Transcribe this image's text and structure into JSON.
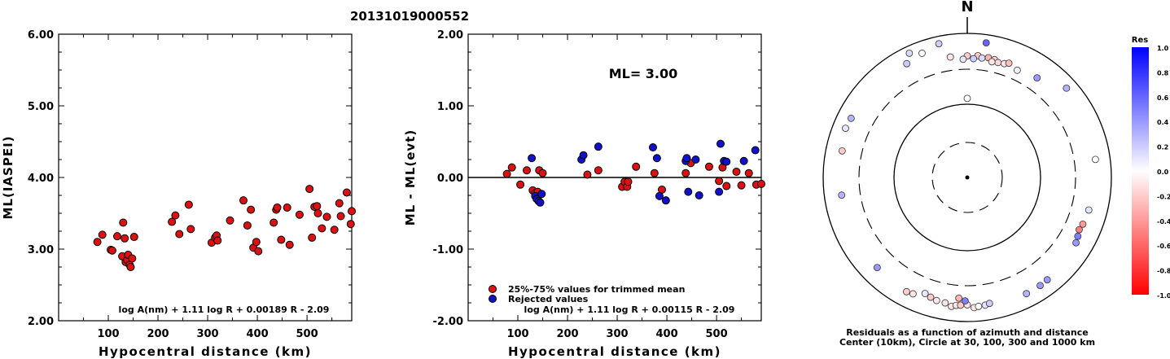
{
  "title": "20131019000552",
  "chart_data": [
    {
      "type": "scatter",
      "ylabel": "ML(IASPEI)",
      "xlabel": "Hypocentral distance (km)",
      "xlim": [
        0,
        590
      ],
      "ylim": [
        2.0,
        6.0
      ],
      "xticks": [
        100,
        200,
        300,
        400,
        500
      ],
      "yticks": [
        "2.00",
        "3.00",
        "4.00",
        "5.00",
        "6.00"
      ],
      "yticks_values": [
        2,
        3,
        4,
        5,
        6
      ],
      "formula": "log A(nm) + 1.11 log R + 0.00189 R - 2.09",
      "marker_color": "#dd1111",
      "points": [
        [
          78,
          3.1
        ],
        [
          88,
          3.2
        ],
        [
          105,
          2.99
        ],
        [
          108,
          2.98
        ],
        [
          118,
          3.18
        ],
        [
          130,
          3.37
        ],
        [
          133,
          3.15
        ],
        [
          128,
          2.9
        ],
        [
          135,
          2.82
        ],
        [
          138,
          2.85
        ],
        [
          140,
          2.92
        ],
        [
          143,
          2.78
        ],
        [
          145,
          2.75
        ],
        [
          148,
          2.87
        ],
        [
          152,
          3.17
        ],
        [
          228,
          3.38
        ],
        [
          235,
          3.47
        ],
        [
          243,
          3.21
        ],
        [
          262,
          3.62
        ],
        [
          266,
          3.28
        ],
        [
          308,
          3.09
        ],
        [
          315,
          3.16
        ],
        [
          318,
          3.19
        ],
        [
          320,
          3.12
        ],
        [
          345,
          3.4
        ],
        [
          372,
          3.68
        ],
        [
          380,
          3.33
        ],
        [
          387,
          3.55
        ],
        [
          392,
          3.02
        ],
        [
          398,
          3.1
        ],
        [
          402,
          2.97
        ],
        [
          433,
          3.37
        ],
        [
          438,
          3.55
        ],
        [
          440,
          3.58
        ],
        [
          448,
          3.13
        ],
        [
          460,
          3.58
        ],
        [
          465,
          3.06
        ],
        [
          485,
          3.48
        ],
        [
          505,
          3.84
        ],
        [
          510,
          3.16
        ],
        [
          515,
          3.59
        ],
        [
          520,
          3.6
        ],
        [
          522,
          3.5
        ],
        [
          530,
          3.29
        ],
        [
          540,
          3.45
        ],
        [
          555,
          3.27
        ],
        [
          565,
          3.64
        ],
        [
          568,
          3.46
        ],
        [
          580,
          3.79
        ],
        [
          588,
          3.35
        ],
        [
          590,
          3.53
        ]
      ]
    },
    {
      "type": "scatter",
      "ylabel": "ML - ML(evt)",
      "xlabel": "Hypocentral distance (km)",
      "xlim": [
        0,
        590
      ],
      "ylim": [
        -2.0,
        2.0
      ],
      "xticks": [
        100,
        200,
        300,
        400,
        500
      ],
      "yticks": [
        "-2.00",
        "-1.00",
        "0.00",
        "1.00",
        "2.00"
      ],
      "yticks_values": [
        -2,
        -1,
        0,
        1,
        2
      ],
      "annotation": "ML= 3.00",
      "formula": "log A(nm) + 1.11 log R + 0.00115 R - 2.09",
      "series": [
        {
          "name": "25%-75% values for trimmed mean",
          "color": "#dd1111",
          "points": [
            [
              78,
              0.05
            ],
            [
              88,
              0.14
            ],
            [
              105,
              -0.1
            ],
            [
              118,
              0.1
            ],
            [
              130,
              -0.18
            ],
            [
              135,
              -0.22
            ],
            [
              140,
              -0.2
            ],
            [
              143,
              0.1
            ],
            [
              150,
              0.06
            ],
            [
              240,
              0.04
            ],
            [
              262,
              0.1
            ],
            [
              310,
              -0.13
            ],
            [
              315,
              -0.06
            ],
            [
              320,
              -0.13
            ],
            [
              322,
              -0.06
            ],
            [
              338,
              0.15
            ],
            [
              375,
              0.06
            ],
            [
              390,
              -0.17
            ],
            [
              438,
              0.06
            ],
            [
              448,
              0.2
            ],
            [
              485,
              0.15
            ],
            [
              505,
              -0.05
            ],
            [
              512,
              0.14
            ],
            [
              520,
              -0.12
            ],
            [
              540,
              0.08
            ],
            [
              550,
              -0.11
            ],
            [
              565,
              0.06
            ],
            [
              580,
              -0.1
            ],
            [
              590,
              -0.09
            ]
          ]
        },
        {
          "name": "Rejected values",
          "color": "#1111cc",
          "points": [
            [
              128,
              0.27
            ],
            [
              135,
              -0.26
            ],
            [
              138,
              -0.3
            ],
            [
              142,
              -0.33
            ],
            [
              145,
              -0.35
            ],
            [
              148,
              -0.23
            ],
            [
              228,
              0.25
            ],
            [
              232,
              0.31
            ],
            [
              262,
              0.43
            ],
            [
              372,
              0.42
            ],
            [
              380,
              0.27
            ],
            [
              385,
              -0.26
            ],
            [
              398,
              -0.32
            ],
            [
              438,
              0.23
            ],
            [
              440,
              0.27
            ],
            [
              443,
              -0.2
            ],
            [
              458,
              0.25
            ],
            [
              465,
              -0.25
            ],
            [
              505,
              -0.2
            ],
            [
              508,
              0.47
            ],
            [
              515,
              0.23
            ],
            [
              520,
              0.22
            ],
            [
              555,
              0.23
            ],
            [
              578,
              0.38
            ]
          ]
        }
      ]
    },
    {
      "type": "polar-scatter",
      "north_label": "N",
      "caption_line1": "Residuals as a function of azimuth and distance",
      "caption_line2": "Center (10km), Circle at 30, 100, 300 and 1000 km",
      "rings_km": [
        30,
        100,
        300,
        1000
      ],
      "colorbar": {
        "title": "Res",
        "ticks": [
          "1.0",
          "0.8",
          "0.6",
          "0.4",
          "0.2",
          "0.0",
          "-0.2",
          "-0.4",
          "-0.6",
          "-0.8",
          "-1.0"
        ]
      },
      "points_az_dist_res": [
        [
          0,
          120,
          0.0
        ],
        [
          332,
          600,
          0.2
        ],
        [
          335,
          790,
          0.15
        ],
        [
          348,
          780,
          0.2
        ],
        [
          340,
          670,
          0.0
        ],
        [
          8,
          760,
          0.6
        ],
        [
          352,
          470,
          -0.1
        ],
        [
          0,
          470,
          -0.2
        ],
        [
          5,
          480,
          -0.2
        ],
        [
          10,
          470,
          -0.3
        ],
        [
          13,
          460,
          -0.2
        ],
        [
          15,
          430,
          -0.15
        ],
        [
          18,
          440,
          -0.1
        ],
        [
          20,
          470,
          -0.25
        ],
        [
          25,
          420,
          0.05
        ],
        [
          12,
          420,
          -0.1
        ],
        [
          7,
          450,
          0.15
        ],
        [
          3,
          430,
          0.2
        ],
        [
          358,
          420,
          0.1
        ],
        [
          35,
          470,
          0.4
        ],
        [
          48,
          700,
          0.3
        ],
        [
          297,
          630,
          0.3
        ],
        [
          292,
          650,
          0.1
        ],
        [
          282,
          580,
          -0.2
        ],
        [
          262,
          560,
          0.3
        ],
        [
          82,
          610,
          0.0
        ],
        [
          105,
          540,
          0.1
        ],
        [
          112,
          520,
          -0.4
        ],
        [
          115,
          500,
          -0.5
        ],
        [
          118,
          530,
          0.5
        ],
        [
          121,
          560,
          0.4
        ],
        [
          225,
          570,
          0.4
        ],
        [
          200,
          500,
          0.1
        ],
        [
          197,
          530,
          -0.2
        ],
        [
          194,
          560,
          -0.1
        ],
        [
          190,
          570,
          -0.1
        ],
        [
          187,
          620,
          -0.1
        ],
        [
          185,
          590,
          -0.1
        ],
        [
          183,
          580,
          -0.2
        ],
        [
          180,
          570,
          -0.1
        ],
        [
          177,
          630,
          -0.1
        ],
        [
          175,
          610,
          0.0
        ],
        [
          172,
          600,
          0.1
        ],
        [
          170,
          580,
          0.2
        ],
        [
          205,
          590,
          -0.1
        ],
        [
          208,
          610,
          -0.2
        ],
        [
          184,
          460,
          -0.3
        ],
        [
          181,
          500,
          0.5
        ],
        [
          153,
          630,
          0.3
        ],
        [
          146,
          630,
          0.4
        ],
        [
          142,
          620,
          0.4
        ]
      ]
    }
  ]
}
